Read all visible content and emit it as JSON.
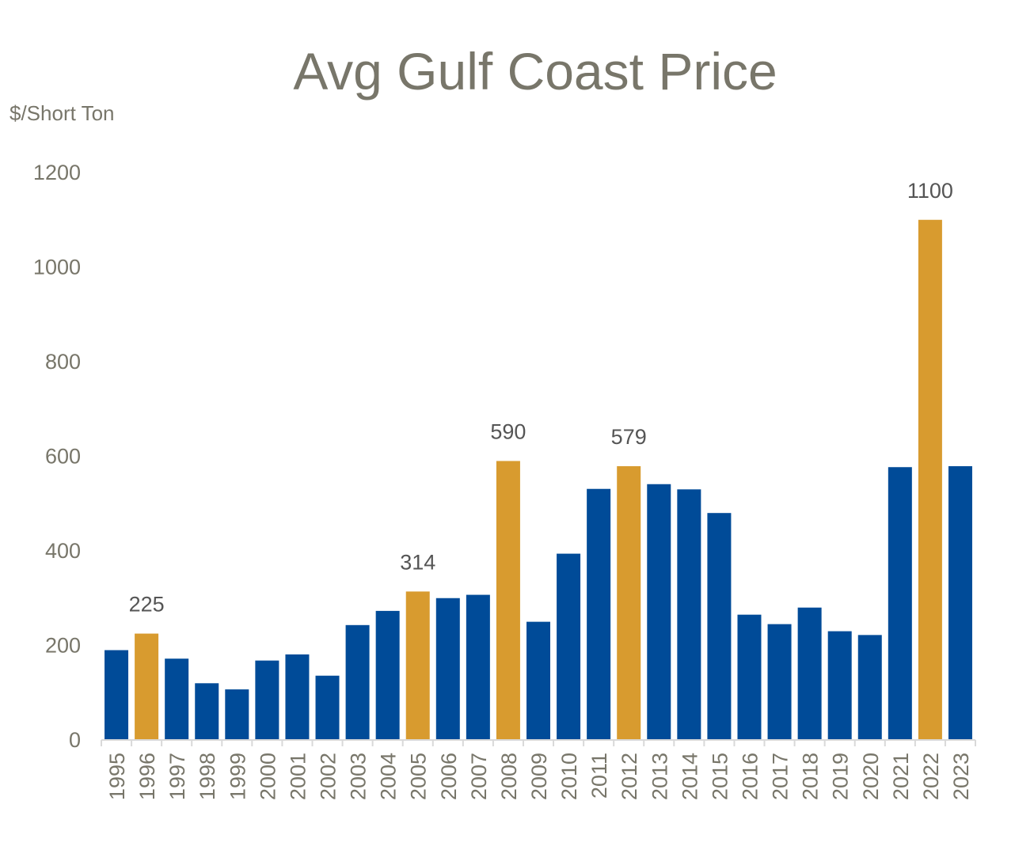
{
  "chart_data": {
    "type": "bar",
    "title": "Avg Gulf Coast Price",
    "ylabel": "$/Short Ton",
    "xlabel": "",
    "ylim": [
      0,
      1200
    ],
    "yticks": [
      0,
      200,
      400,
      600,
      800,
      1000,
      1200
    ],
    "grid": false,
    "legend": "none",
    "colors": {
      "default": "#004b98",
      "highlight": "#d89b2f",
      "axis": "#d9d9d9",
      "text": "#78766a"
    },
    "categories": [
      "1995",
      "1996",
      "1997",
      "1998",
      "1999",
      "2000",
      "2001",
      "2002",
      "2003",
      "2004",
      "2005",
      "2006",
      "2007",
      "2008",
      "2009",
      "2010",
      "2011",
      "2012",
      "2013",
      "2014",
      "2015",
      "2016",
      "2017",
      "2018",
      "2019",
      "2020",
      "2021",
      "2022",
      "2023"
    ],
    "values": [
      190,
      225,
      172,
      120,
      107,
      168,
      181,
      136,
      243,
      273,
      314,
      300,
      307,
      590,
      250,
      394,
      531,
      579,
      541,
      530,
      480,
      265,
      245,
      280,
      230,
      222,
      577,
      1100,
      579
    ],
    "highlighted": [
      false,
      true,
      false,
      false,
      false,
      false,
      false,
      false,
      false,
      false,
      true,
      false,
      false,
      true,
      false,
      false,
      false,
      true,
      false,
      false,
      false,
      false,
      false,
      false,
      false,
      false,
      false,
      true,
      false
    ],
    "data_labels": [
      null,
      "225",
      null,
      null,
      null,
      null,
      null,
      null,
      null,
      null,
      "314",
      null,
      null,
      "590",
      null,
      null,
      null,
      "579",
      null,
      null,
      null,
      null,
      null,
      null,
      null,
      null,
      null,
      "1100",
      null
    ]
  }
}
